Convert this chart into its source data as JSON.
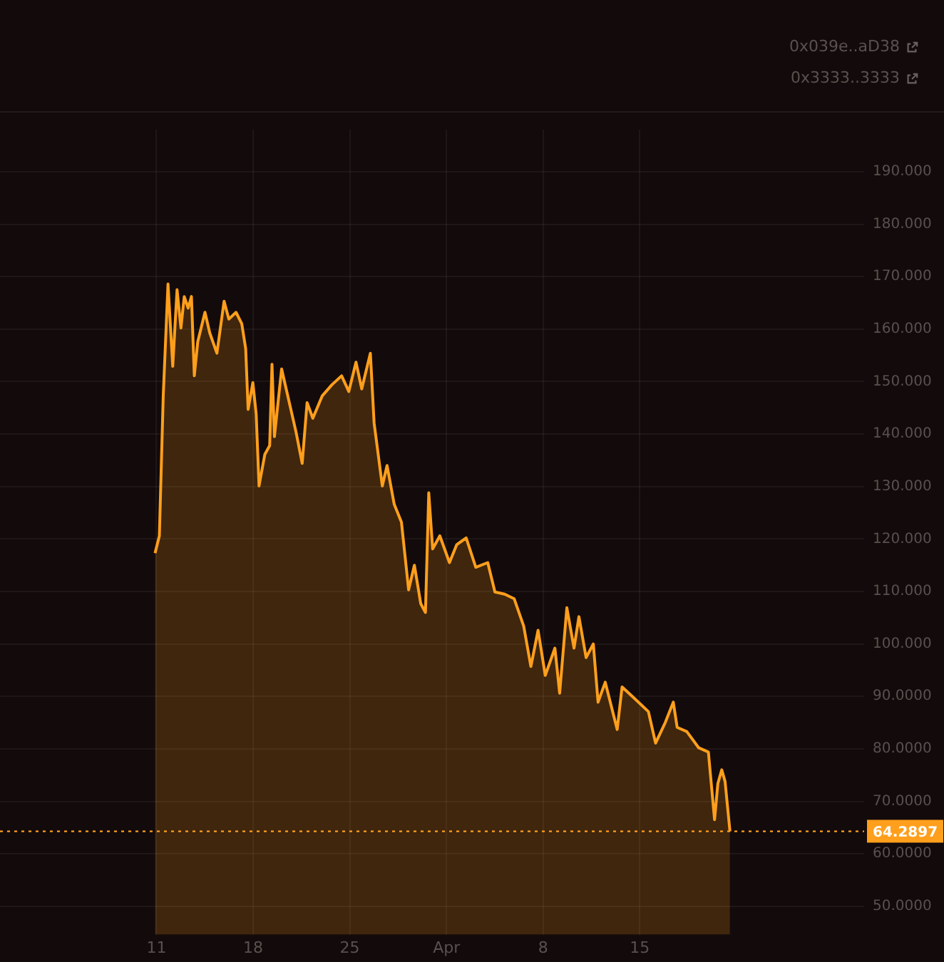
{
  "chart_data": {
    "type": "area",
    "marker": "none",
    "grid": true,
    "annotations": [
      "0x039e..aD38",
      "0x3333..3333"
    ],
    "xlim": [
      "--02-27T16:00",
      "--05-01T06:00"
    ],
    "xticks": [
      {
        "value": "--03-11",
        "label": "11"
      },
      {
        "value": "--03-18",
        "label": "18"
      },
      {
        "value": "--03-25",
        "label": "25"
      },
      {
        "value": "--04-01",
        "label": "Apr"
      },
      {
        "value": "--04-08",
        "label": "8"
      },
      {
        "value": "--04-15",
        "label": "15"
      }
    ],
    "ylim": [
      44.6,
      198
    ],
    "yticks": [
      {
        "value": 50,
        "label": "50.0000"
      },
      {
        "value": 60,
        "label": "60.0000"
      },
      {
        "value": 70,
        "label": "70.0000"
      },
      {
        "value": 80,
        "label": "80.0000"
      },
      {
        "value": 90,
        "label": "90.0000"
      },
      {
        "value": 100,
        "label": "100.000"
      },
      {
        "value": 110,
        "label": "110.000"
      },
      {
        "value": 120,
        "label": "120.000"
      },
      {
        "value": 130,
        "label": "130.000"
      },
      {
        "value": 140,
        "label": "140.000"
      },
      {
        "value": 150,
        "label": "150.000"
      },
      {
        "value": 160,
        "label": "160.000"
      },
      {
        "value": 170,
        "label": "170.000"
      },
      {
        "value": 180,
        "label": "180.000"
      },
      {
        "value": 190,
        "label": "190.000"
      }
    ],
    "ref_lines": [
      {
        "axis": "y",
        "value": 64.2897,
        "label": "64.2897",
        "color": "#ff9f1c",
        "line_style": "dotted"
      }
    ],
    "series": [
      {
        "color": "#ff9f1c",
        "x": [
          "--03-10T21:30",
          "--03-11T05:00",
          "--03-11T11:45",
          "--03-11T20:00",
          "--03-12T04:15",
          "--03-12T11:45",
          "--03-12T18:30",
          "--03-13T00:15",
          "--03-13T07:00",
          "--03-13T12:45",
          "--03-13T17:45",
          "--03-13T23:45",
          "--03-14T12:15",
          "--03-14T20:30",
          "--03-15T09:00",
          "--03-15T21:30",
          "--03-16T05:45",
          "--03-16T18:15",
          "--03-17T04:15",
          "--03-17T11:00",
          "--03-17T15:15",
          "--03-17T23:30",
          "--03-18T05:15",
          "--03-18T10:15",
          "--03-18T20:15",
          "--03-19T04:45",
          "--03-19T08:45",
          "--03-19T13:00",
          "--03-20T01:30",
          "--03-20T14:00",
          "--03-21T02:30",
          "--03-21T13:15",
          "--03-21T21:45",
          "--03-22T07:45",
          "--03-23T00:15",
          "--03-23T17:00",
          "--03-24T09:45",
          "--03-24T22:15",
          "--03-25T10:45",
          "--03-25T20:45",
          "--03-26T11:45",
          "--03-26T18:15",
          "--03-27T08:30",
          "--03-27T16:45",
          "--03-28T05:15",
          "--03-28T17:45",
          "--03-29T06:15",
          "--03-29T16:15",
          "--03-30T03:15",
          "--03-30T11:30",
          "--03-30T17:15",
          "--03-31T00:00",
          "--03-31T12:30",
          "--04-01T05:15",
          "--04-01T17:45",
          "--04-02T10:15",
          "--04-03T03:00",
          "--04-03T23:45",
          "--04-04T12:15",
          "--04-05T05:00",
          "--04-05T21:45",
          "--04-06T14:15",
          "--04-07T02:45",
          "--04-07T15:15",
          "--04-08T03:45",
          "--04-08T20:30",
          "--04-09T04:45",
          "--04-09T17:15",
          "--04-10T05:45",
          "--04-10T14:15",
          "--04-11T02:45",
          "--04-11T15:15",
          "--04-11T23:30",
          "--04-12T12:00",
          "--04-13T08:45",
          "--04-13T17:15",
          "--04-14T14:00",
          "--04-15T15:00",
          "--04-16T03:30",
          "--04-16T20:15",
          "--04-17T10:15",
          "--04-17T17:00",
          "--04-18T09:45",
          "--04-19T06:30",
          "--04-19T23:15",
          "--04-20T10:00",
          "--04-20T15:45",
          "--04-20T22:30",
          "--04-21T04:15",
          "--04-21T12:45"
        ],
        "values": [
          117.3,
          120.6,
          147.3,
          168.6,
          152.9,
          167.5,
          160.2,
          166.2,
          164.0,
          166.2,
          151.1,
          157.6,
          163.2,
          159.3,
          155.4,
          165.3,
          161.9,
          163.2,
          161.0,
          156.3,
          144.7,
          149.8,
          143.8,
          130.1,
          136.1,
          137.8,
          153.3,
          139.5,
          152.4,
          146.4,
          140.4,
          134.4,
          146.0,
          143.0,
          147.3,
          149.4,
          151.1,
          148.1,
          153.7,
          148.6,
          155.4,
          142.1,
          130.1,
          134.0,
          126.6,
          123.2,
          110.3,
          115.0,
          107.7,
          106.0,
          128.8,
          118.1,
          120.6,
          115.5,
          118.9,
          120.2,
          114.6,
          115.5,
          109.9,
          109.5,
          108.6,
          103.4,
          95.7,
          102.6,
          94.0,
          99.2,
          90.6,
          106.9,
          99.2,
          105.2,
          97.4,
          100.0,
          88.9,
          92.7,
          83.7,
          91.8,
          89.7,
          87.1,
          81.1,
          85.0,
          88.9,
          84.1,
          83.3,
          80.2,
          79.4,
          66.5,
          73.4,
          76.0,
          73.8,
          64.2897
        ]
      }
    ]
  }
}
